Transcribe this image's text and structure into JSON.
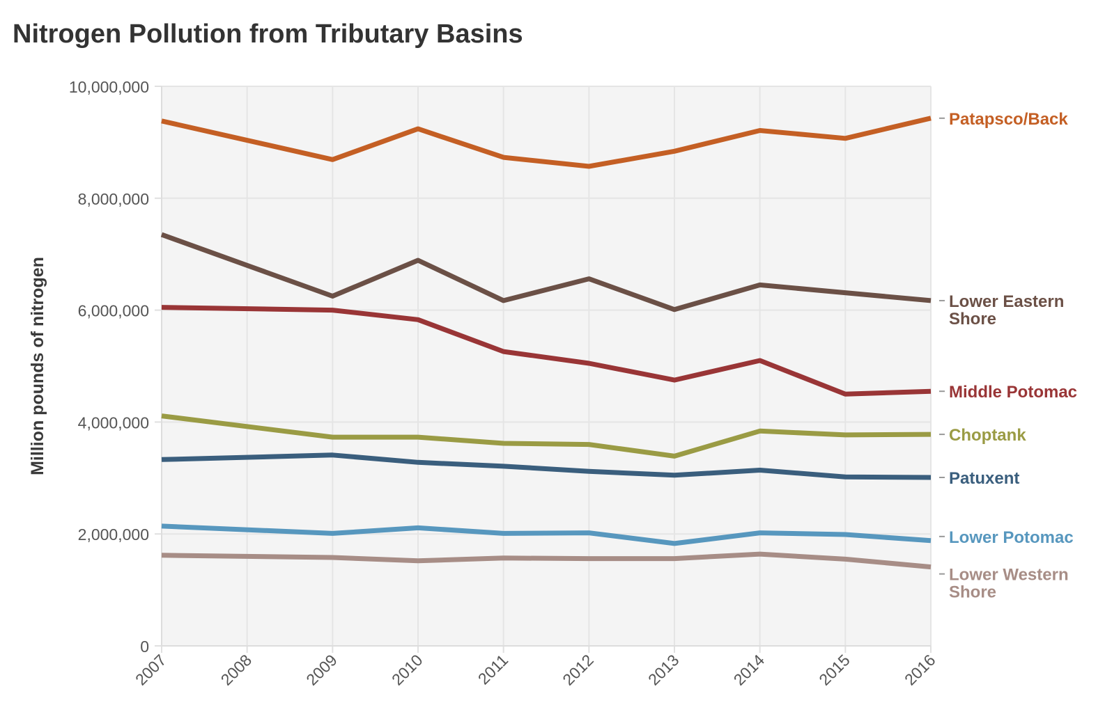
{
  "title": "Nitrogen Pollution from Tributary Basins",
  "chart_data": {
    "type": "line",
    "title": "Nitrogen Pollution from Tributary Basins",
    "xlabel": "",
    "ylabel": "Million pounds of nitrogen",
    "x": [
      "2007",
      "2008",
      "2009",
      "2010",
      "2011",
      "2012",
      "2013",
      "2014",
      "2015",
      "2016"
    ],
    "ylim": [
      0,
      10000000
    ],
    "yticks": [
      "0",
      "2,000,000",
      "4,000,000",
      "6,000,000",
      "8,000,000",
      "10,000,000"
    ],
    "ytick_values": [
      0,
      2000000,
      4000000,
      6000000,
      8000000,
      10000000
    ],
    "grid": true,
    "legend": "direct labels at right end of lines",
    "series": [
      {
        "name": "Patapsco/Back",
        "color": "#c45f24",
        "label_lines": [
          "Patapsco/Back"
        ],
        "values": [
          9380000,
          null,
          8690000,
          9240000,
          8730000,
          8570000,
          8840000,
          9210000,
          9070000,
          9430000
        ]
      },
      {
        "name": "Lower Eastern Shore",
        "color": "#6b5046",
        "label_lines": [
          "Lower Eastern",
          "Shore"
        ],
        "values": [
          7350000,
          null,
          6250000,
          6890000,
          6170000,
          6560000,
          6010000,
          6450000,
          null,
          6170000
        ]
      },
      {
        "name": "Middle Potomac",
        "color": "#993536",
        "label_lines": [
          "Middle Potomac"
        ],
        "values": [
          6050000,
          null,
          6000000,
          5830000,
          5260000,
          5050000,
          4750000,
          5100000,
          4500000,
          4550000
        ]
      },
      {
        "name": "Choptank",
        "color": "#9a9b44",
        "label_lines": [
          "Choptank"
        ],
        "values": [
          4110000,
          null,
          3730000,
          3730000,
          3620000,
          3600000,
          3390000,
          3840000,
          3770000,
          3780000
        ]
      },
      {
        "name": "Patuxent",
        "color": "#3a5e7d",
        "label_lines": [
          "Patuxent"
        ],
        "values": [
          3330000,
          null,
          3410000,
          3280000,
          3210000,
          3120000,
          3050000,
          3140000,
          3020000,
          3010000
        ]
      },
      {
        "name": "Lower Potomac",
        "color": "#5797be",
        "label_lines": [
          "Lower Potomac"
        ],
        "values": [
          2140000,
          null,
          2010000,
          2110000,
          2010000,
          2020000,
          1830000,
          2020000,
          1990000,
          1880000
        ]
      },
      {
        "name": "Lower Western Shore",
        "color": "#a78d86",
        "label_lines": [
          "Lower Western",
          "Shore"
        ],
        "values": [
          1620000,
          null,
          1580000,
          1520000,
          1570000,
          1560000,
          1560000,
          1640000,
          1550000,
          1410000
        ]
      }
    ]
  }
}
